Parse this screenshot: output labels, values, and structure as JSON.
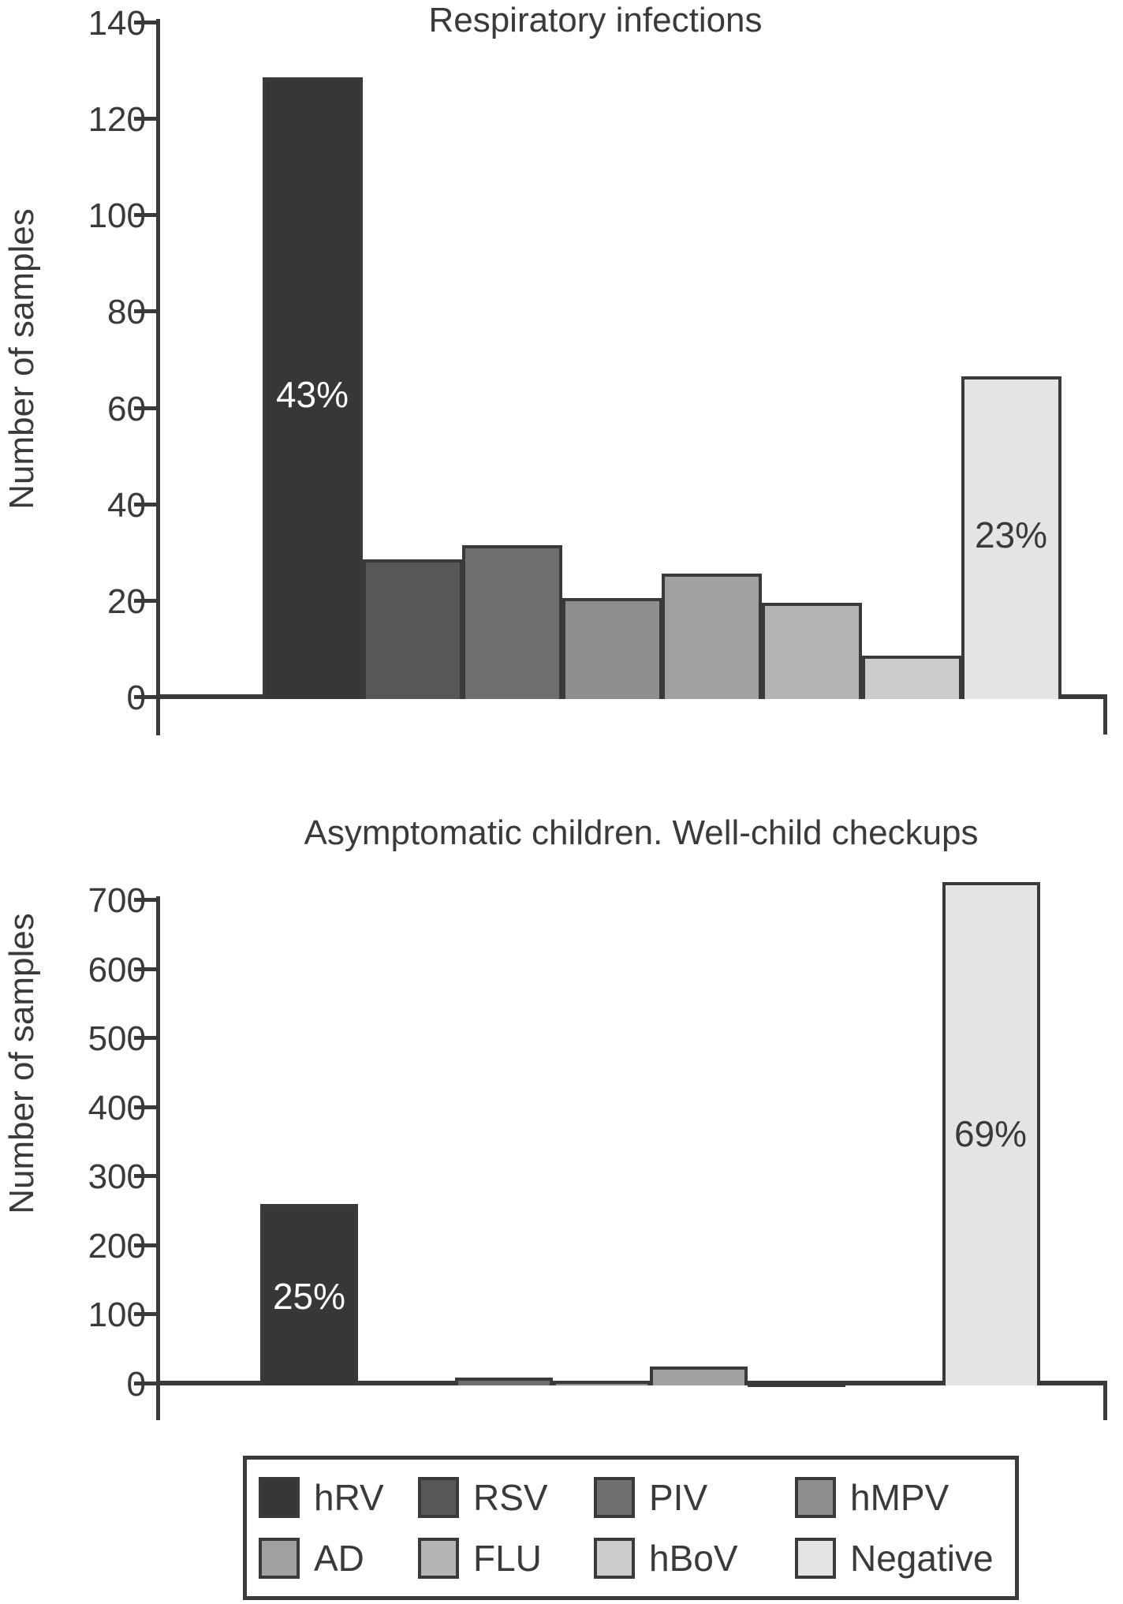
{
  "colors": {
    "hRV": "#373737",
    "RSV": "#565758",
    "PIV": "#6d6f71",
    "hMPV": "#8d8f91",
    "AD": "#9fa1a2",
    "FLU": "#b4b5b6",
    "hBoV": "#cbcccd",
    "Negative": "#e3e4e5",
    "axis": "#3a3a3a",
    "background": "#ffffff"
  },
  "chart_data": [
    {
      "type": "bar",
      "title": "Respiratory infections",
      "xlabel": "",
      "ylabel": "Number of samples",
      "ylim": [
        0,
        140
      ],
      "yticks": [
        0,
        20,
        40,
        60,
        80,
        100,
        120,
        140
      ],
      "grid": false,
      "categories": [
        "hRV",
        "RSV",
        "PIV",
        "hMPV",
        "AD",
        "FLU",
        "hBoV",
        "Negative"
      ],
      "values": [
        129,
        29,
        32,
        21,
        26,
        20,
        9,
        67
      ],
      "bar_labels": [
        {
          "category": "hRV",
          "text": "43%"
        },
        {
          "category": "Negative",
          "text": "23%"
        }
      ],
      "legend_position": "shared-bottom"
    },
    {
      "type": "bar",
      "title": "Asymptomatic children. Well-child checkups",
      "xlabel": "",
      "ylabel": "Number of samples",
      "ylim": [
        0,
        700
      ],
      "yticks": [
        0,
        100,
        200,
        300,
        400,
        500,
        600,
        700
      ],
      "grid": false,
      "categories": [
        "hRV",
        "RSV",
        "PIV",
        "hMPV",
        "AD",
        "FLU",
        "hBoV",
        "Negative"
      ],
      "values": [
        263,
        5,
        11,
        7,
        27,
        2,
        4,
        729
      ],
      "bar_labels": [
        {
          "category": "hRV",
          "text": "25%"
        },
        {
          "category": "Negative",
          "text": "69%"
        }
      ],
      "legend_position": "shared-bottom"
    }
  ],
  "legend": {
    "items": [
      {
        "label": "hRV"
      },
      {
        "label": "RSV"
      },
      {
        "label": "PIV"
      },
      {
        "label": "hMPV"
      },
      {
        "label": "AD"
      },
      {
        "label": "FLU"
      },
      {
        "label": "hBoV"
      },
      {
        "label": "Negative"
      }
    ]
  }
}
